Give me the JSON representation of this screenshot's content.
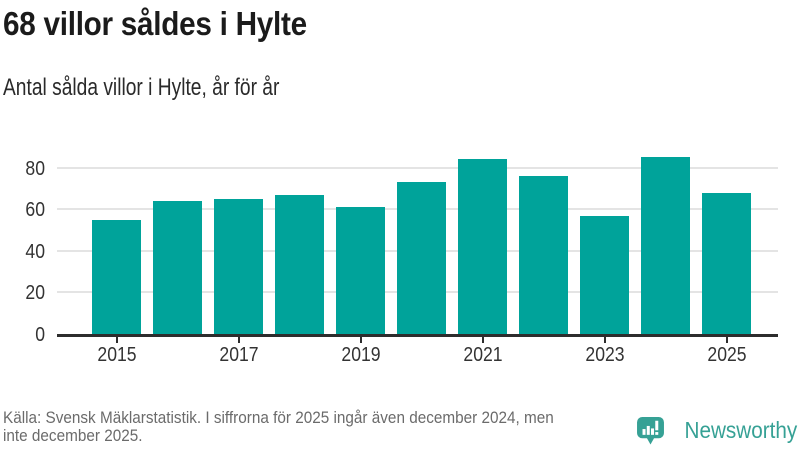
{
  "header": {
    "title": "68 villor såldes i Hylte",
    "subtitle": "Antal sålda villor i Hylte, år för år"
  },
  "chart_data": {
    "type": "bar",
    "title": "68 villor såldes i Hylte",
    "subtitle": "Antal sålda villor i Hylte, år för år",
    "categories": [
      2015,
      2016,
      2017,
      2018,
      2019,
      2020,
      2021,
      2022,
      2023,
      2024,
      2025
    ],
    "values": [
      55,
      64,
      65,
      67,
      61,
      73,
      84,
      76,
      57,
      85,
      68
    ],
    "xticks": [
      2015,
      2017,
      2019,
      2021,
      2023,
      2025
    ],
    "yticks": [
      0,
      20,
      40,
      60,
      80
    ],
    "ylim": [
      0,
      90
    ],
    "xlabel": "",
    "ylabel": "",
    "grid": "horizontal-only",
    "legend": "none",
    "bar_color": "#00a39a",
    "axis_color": "#2d2d2d",
    "gridline_color": "#e4e4e4",
    "tick_label_color": "#333333"
  },
  "footer": {
    "source": "Källa: Svensk Mäklarstatistik. I siffrorna för 2025 ingår även december 2024, men\ninte december 2025.",
    "brand": {
      "name": "Newsworthy",
      "color": "#36a195",
      "icon": "bar-chart-speech-bubble-icon"
    }
  }
}
